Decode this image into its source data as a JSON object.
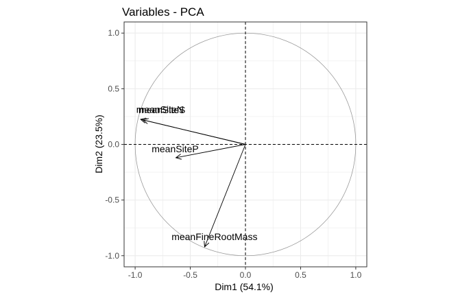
{
  "chart_data": {
    "type": "scatter",
    "subtype": "pca-variable-correlation-circle",
    "title": "Variables - PCA",
    "xlabel": "Dim1 (54.1%)",
    "ylabel": "Dim2 (23.5%)",
    "xlim": [
      -1.1,
      1.1
    ],
    "ylim": [
      -1.1,
      1.1
    ],
    "xticks": [
      -1.0,
      -0.5,
      0.0,
      0.5,
      1.0
    ],
    "xtick_labels": [
      "-1.0",
      "-0.5",
      "0.0",
      "0.5",
      "1.0"
    ],
    "yticks": [
      -1.0,
      -0.5,
      0.0,
      0.5,
      1.0
    ],
    "ytick_labels": [
      "-1.0",
      "-0.5",
      "0.0",
      "0.5",
      "1.0"
    ],
    "grid": true,
    "unit_circle": true,
    "reference_lines": [
      0,
      0
    ],
    "variables": [
      {
        "name": "meanSiteS",
        "x": -0.93,
        "y": 0.22
      },
      {
        "name": "meanSiteN",
        "x": -0.95,
        "y": 0.225
      },
      {
        "name": "meanSiteP",
        "x": -0.63,
        "y": -0.12
      },
      {
        "name": "meanFineRootMass",
        "x": -0.37,
        "y": -0.92
      }
    ],
    "label_texts": [
      "meanSiteS",
      "meanSiteN",
      "meanSiteP",
      "meanFineRootMass"
    ]
  },
  "colors": {
    "arrow": "#000000",
    "circle": "#999999",
    "grid": "#ebebeb",
    "panel_border": "#333333",
    "tick_text": "#4d4d4d"
  }
}
